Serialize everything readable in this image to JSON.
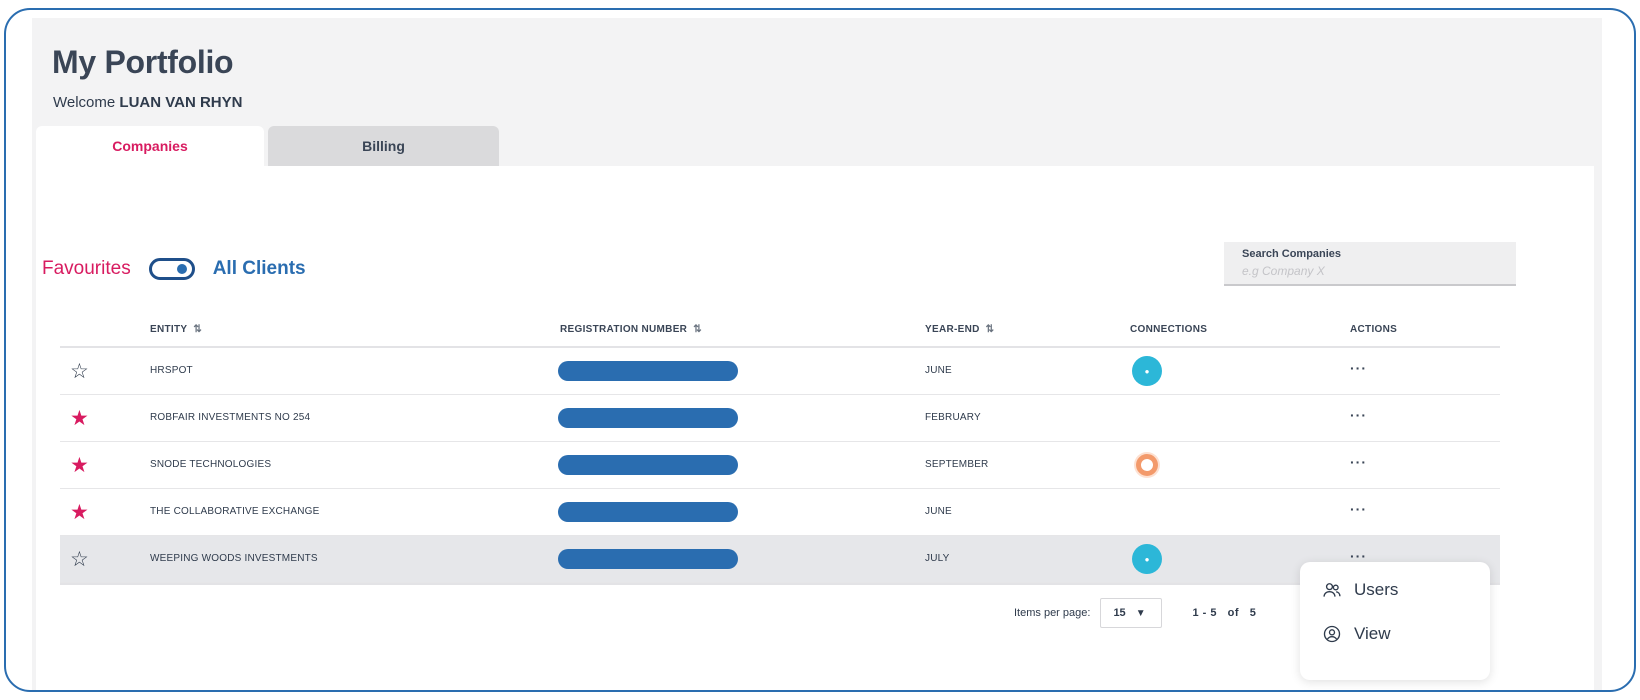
{
  "header": {
    "title": "My Portfolio",
    "welcome_prefix": "Welcome",
    "user_name": "LUAN VAN RHYN"
  },
  "tabs": [
    {
      "label": "Companies",
      "active": true
    },
    {
      "label": "Billing",
      "active": false
    }
  ],
  "filter": {
    "favourites_label": "Favourites",
    "all_clients_label": "All Clients",
    "toggle_state": "all-clients"
  },
  "search": {
    "label": "Search Companies",
    "placeholder": "e.g Company X",
    "value": ""
  },
  "table": {
    "columns": [
      "ENTITY",
      "REGISTRATION NUMBER",
      "YEAR-END",
      "CONNECTIONS",
      "ACTIONS"
    ],
    "rows": [
      {
        "favourite": false,
        "entity": "HRSPOT",
        "year_end": "JUNE",
        "connection": "xero",
        "actions": "···"
      },
      {
        "favourite": true,
        "entity": "ROBFAIR INVESTMENTS NO 254",
        "year_end": "FEBRUARY",
        "connection": "",
        "actions": "···"
      },
      {
        "favourite": true,
        "entity": "SNODE TECHNOLOGIES",
        "year_end": "SEPTEMBER",
        "connection": "ring",
        "actions": "···"
      },
      {
        "favourite": true,
        "entity": "THE COLLABORATIVE EXCHANGE",
        "year_end": "JUNE",
        "connection": "",
        "actions": "···"
      },
      {
        "favourite": false,
        "entity": "WEEPING WOODS INVESTMENTS",
        "year_end": "JULY",
        "connection": "xero",
        "actions": "···",
        "selected": true
      }
    ]
  },
  "pagination": {
    "items_per_page_label": "Items per page:",
    "items_per_page": "15",
    "range": "1 - 5",
    "of_label": "of",
    "total": "5"
  },
  "context_menu": {
    "items": [
      {
        "label": "Users",
        "icon": "users-icon"
      },
      {
        "label": "View",
        "icon": "user-circle-icon"
      }
    ]
  },
  "colors": {
    "accent_pink": "#d81b60",
    "accent_blue": "#2a6db0",
    "xero_blue": "#2cb7d8"
  }
}
